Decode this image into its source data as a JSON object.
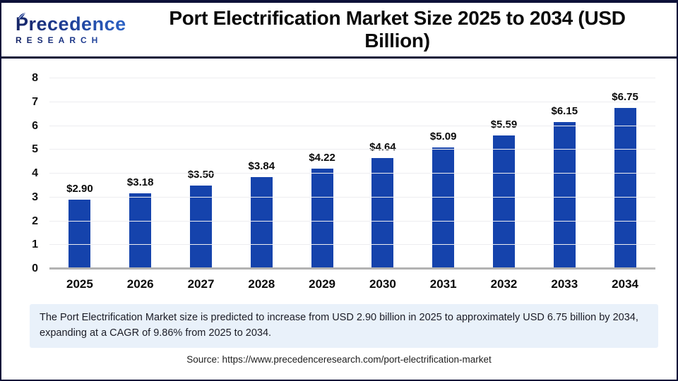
{
  "logo": {
    "name": "Precedence",
    "subname": "RESEARCH"
  },
  "header": {
    "title": "Port Electrification Market Size 2025 to 2034 (USD Billion)"
  },
  "chart_data": {
    "type": "bar",
    "title": "Port Electrification Market Size 2025 to 2034 (USD Billion)",
    "categories": [
      "2025",
      "2026",
      "2027",
      "2028",
      "2029",
      "2030",
      "2031",
      "2032",
      "2033",
      "2034"
    ],
    "values": [
      2.9,
      3.18,
      3.5,
      3.84,
      4.22,
      4.64,
      5.09,
      5.59,
      6.15,
      6.75
    ],
    "data_labels": [
      "$2.90",
      "$3.18",
      "$3.50",
      "$3.84",
      "$4.22",
      "$4.64",
      "$5.09",
      "$5.59",
      "$6.15",
      "$6.75"
    ],
    "xlabel": "",
    "ylabel": "",
    "ylim": [
      0,
      8
    ],
    "yticks": [
      0,
      1,
      2,
      3,
      4,
      5,
      6,
      7,
      8
    ],
    "grid": true,
    "legend": "none",
    "bar_color": "#1543ac"
  },
  "note": {
    "text": "The Port Electrification Market size is predicted to increase from USD 2.90 billion in 2025 to approximately USD 6.75 billion by 2034, expanding at a CAGR of 9.86% from 2025 to 2034."
  },
  "source": {
    "text": "Source: https://www.precedenceresearch.com/port-electrification-market"
  },
  "colors": {
    "bar": "#1543ac",
    "frame_navy": "#0d1138",
    "note_background": "#e9f1fa",
    "gridline": "#ededf0",
    "baseline": "#b2b2b2"
  }
}
